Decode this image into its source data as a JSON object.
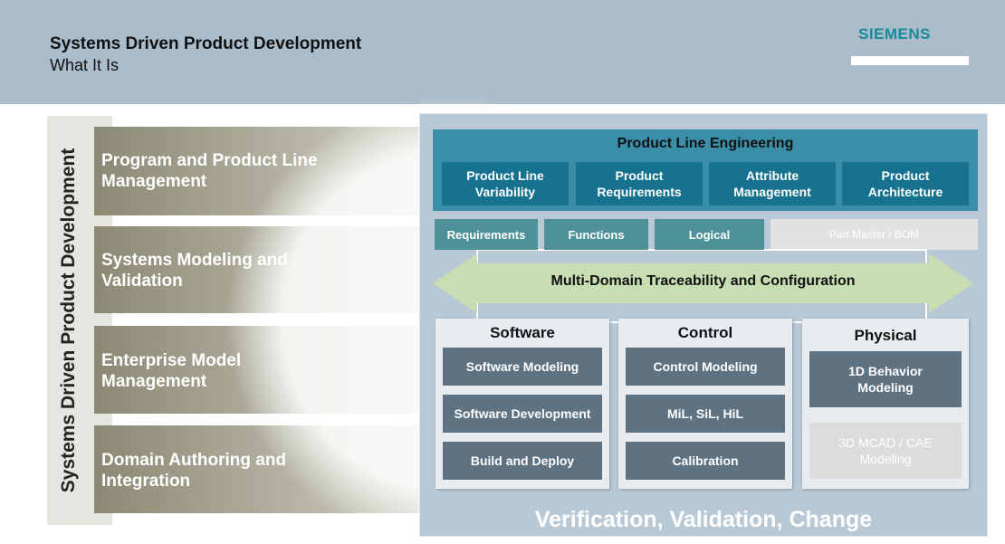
{
  "header": {
    "title": "Systems Driven Product Development",
    "subtitle": "What It Is",
    "logo": "SIEMENS"
  },
  "sidebar": {
    "label": "Systems Driven Product Development",
    "items": [
      "Program and Product Line Management",
      "Systems Modeling and Validation",
      "Enterprise Model Management",
      "Domain Authoring and Integration"
    ]
  },
  "panel": {
    "ple": {
      "title": "Product Line Engineering",
      "items": [
        "Product Line Variability",
        "Product Requirements",
        "Attribute Management",
        "Product Architecture"
      ]
    },
    "tabs": [
      "Requirements",
      "Functions",
      "Logical",
      "Part Master / BOM"
    ],
    "traceability": "Multi-Domain Traceability and Configuration",
    "columns": [
      {
        "title": "Software",
        "items": [
          "Software Modeling",
          "Software Development",
          "Build and Deploy"
        ]
      },
      {
        "title": "Control",
        "items": [
          "Control Modeling",
          "MiL, SiL, HiL",
          "Calibration"
        ]
      },
      {
        "title": "Physical",
        "items": [
          "1D Behavior Modeling",
          "3D MCAD / CAE Modeling"
        ]
      }
    ],
    "footer": "Verification, Validation, Change"
  }
}
